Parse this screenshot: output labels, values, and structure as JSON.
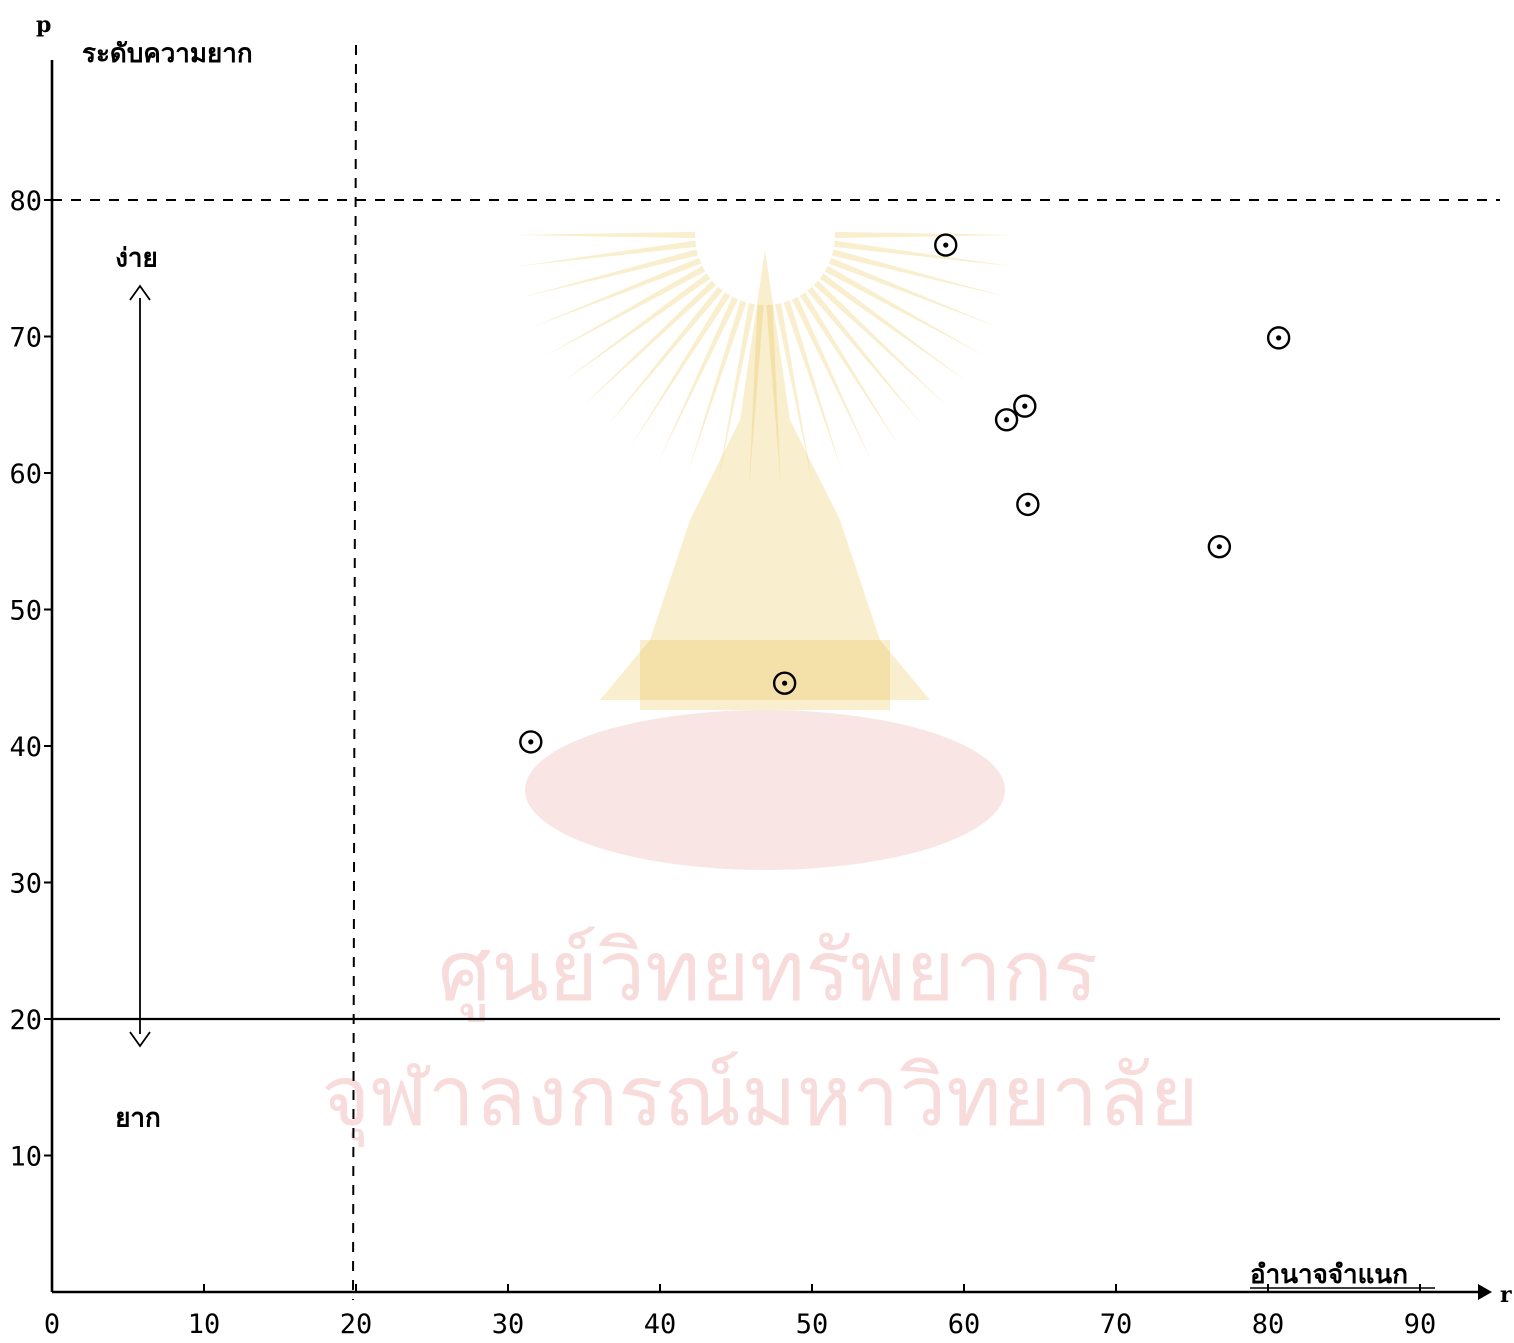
{
  "chart_data": {
    "type": "scatter",
    "x_axis_letter": "r",
    "y_axis_letter": "p",
    "xlabel": "อำนาจจำแนก",
    "ylabel": "ระดับความยาก",
    "x_ticks": [
      0,
      10,
      20,
      30,
      40,
      50,
      60,
      70,
      80,
      90
    ],
    "y_ticks": [
      10,
      20,
      30,
      40,
      50,
      60,
      70,
      80
    ],
    "xlim": [
      0,
      93
    ],
    "ylim": [
      0,
      93
    ],
    "grid": false,
    "reference_lines": [
      {
        "orientation": "vertical",
        "value": 20,
        "style": "dashed"
      },
      {
        "orientation": "horizontal",
        "value": 80,
        "style": "dashed"
      },
      {
        "orientation": "horizontal",
        "value": 20,
        "style": "solid"
      }
    ],
    "annotations": [
      {
        "text": "ง่าย",
        "x": 6,
        "y": 76
      },
      {
        "text": "ยาก",
        "x": 6,
        "y": 13
      }
    ],
    "points": [
      {
        "x": 31.5,
        "y": 40.3
      },
      {
        "x": 48.2,
        "y": 44.6
      },
      {
        "x": 58.8,
        "y": 76.7
      },
      {
        "x": 62.8,
        "y": 63.9
      },
      {
        "x": 64.0,
        "y": 64.9
      },
      {
        "x": 64.2,
        "y": 57.7
      },
      {
        "x": 76.8,
        "y": 54.6
      },
      {
        "x": 80.7,
        "y": 69.9
      }
    ]
  },
  "watermark": {
    "line1": "ศูนย์วิทยทรัพยากร",
    "line2": "จุฬาลงกรณ์มหาวิทยาลัย",
    "color": "#e9c24a"
  }
}
